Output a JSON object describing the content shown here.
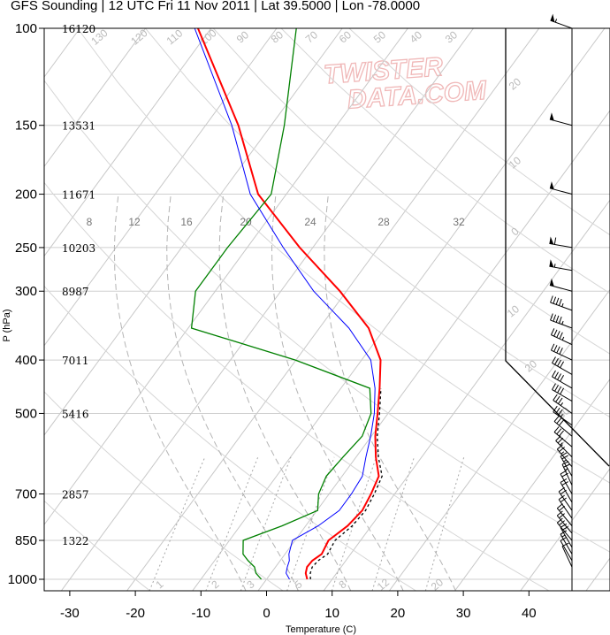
{
  "title": "GFS Sounding | 12 UTC Fri 11 Nov 2011 | Lat 39.5000 | Lon -78.0000",
  "watermark": {
    "line1": "TWISTER",
    "line2": "DATA.COM",
    "color": "#f0b8b8"
  },
  "colors": {
    "temperature": "#ff0000",
    "dewpoint": "#008000",
    "wetbulb": "#0000ff",
    "parcel": "#000000",
    "isotherm": "#c8c8c8",
    "mixing_ratio": "#a8a8a8"
  },
  "chart_data": {
    "type": "line",
    "xlabel": "Temperature (C)",
    "ylabel": "P (hPa)",
    "xlim": [
      -34,
      44
    ],
    "ylim": [
      1050,
      100
    ],
    "y_scale": "log",
    "grid": true,
    "x_ticks": [
      "-30",
      "-20",
      "-10",
      "0",
      "10",
      "20",
      "30",
      "40"
    ],
    "pressure_levels": [
      {
        "p": 100,
        "label": "100",
        "height": "16120"
      },
      {
        "p": 150,
        "label": "150",
        "height": "13531"
      },
      {
        "p": 200,
        "label": "200",
        "height": "11671"
      },
      {
        "p": 250,
        "label": "250",
        "height": "10203"
      },
      {
        "p": 300,
        "label": "300",
        "height": "8987"
      },
      {
        "p": 400,
        "label": "400",
        "height": "7011"
      },
      {
        "p": 500,
        "label": "500",
        "height": "5416"
      },
      {
        "p": 700,
        "label": "700",
        "height": "2857"
      },
      {
        "p": 850,
        "label": "850",
        "height": "1322"
      },
      {
        "p": 1000,
        "label": "1000",
        "height": ""
      }
    ],
    "series": [
      {
        "key": "temperature",
        "points": [
          [
            1000,
            6.2
          ],
          [
            975,
            5.3
          ],
          [
            950,
            4.8
          ],
          [
            925,
            4.9
          ],
          [
            900,
            5.6
          ],
          [
            850,
            5.1
          ],
          [
            800,
            6.4
          ],
          [
            750,
            6.9
          ],
          [
            700,
            6.4
          ],
          [
            650,
            5.6
          ],
          [
            600,
            3.0
          ],
          [
            550,
            0.6
          ],
          [
            500,
            -1.6
          ],
          [
            450,
            -4.1
          ],
          [
            400,
            -7.1
          ],
          [
            350,
            -12.5
          ],
          [
            300,
            -21.0
          ],
          [
            250,
            -32.0
          ],
          [
            200,
            -44.3
          ],
          [
            150,
            -55.0
          ],
          [
            100,
            -72.0
          ]
        ]
      },
      {
        "key": "dewpoint",
        "points": [
          [
            1000,
            -0.8
          ],
          [
            975,
            -2.3
          ],
          [
            950,
            -3.2
          ],
          [
            925,
            -4.9
          ],
          [
            900,
            -6.4
          ],
          [
            850,
            -7.9
          ],
          [
            800,
            -3.6
          ],
          [
            750,
            0.1
          ],
          [
            700,
            -1.6
          ],
          [
            650,
            -2.4
          ],
          [
            600,
            -2.0
          ],
          [
            550,
            -1.4
          ],
          [
            500,
            -2.6
          ],
          [
            450,
            -5.6
          ],
          [
            400,
            -20.1
          ],
          [
            350,
            -39.5
          ],
          [
            300,
            -43.0
          ],
          [
            250,
            -43.0
          ],
          [
            200,
            -42.3
          ],
          [
            150,
            -48.0
          ],
          [
            100,
            -57.0
          ]
        ]
      },
      {
        "key": "wetbulb",
        "points": [
          [
            1000,
            3.5
          ],
          [
            975,
            2.3
          ],
          [
            950,
            1.8
          ],
          [
            925,
            1.4
          ],
          [
            900,
            0.6
          ],
          [
            850,
            -0.4
          ],
          [
            800,
            1.9
          ],
          [
            750,
            3.4
          ],
          [
            700,
            3.4
          ],
          [
            650,
            3.1
          ],
          [
            600,
            1.5
          ],
          [
            550,
            -0.1
          ],
          [
            500,
            -2.1
          ],
          [
            450,
            -4.8
          ],
          [
            400,
            -8.6
          ],
          [
            350,
            -15.5
          ],
          [
            300,
            -25.0
          ],
          [
            250,
            -34.5
          ],
          [
            200,
            -45.5
          ],
          [
            150,
            -56.0
          ],
          [
            100,
            -72.5
          ]
        ]
      },
      {
        "key": "parcel",
        "points": [
          [
            1000,
            6.7
          ],
          [
            975,
            6.0
          ],
          [
            950,
            5.6
          ],
          [
            925,
            5.8
          ],
          [
            900,
            6.5
          ],
          [
            850,
            6.1
          ],
          [
            800,
            7.1
          ],
          [
            750,
            7.4
          ],
          [
            700,
            6.9
          ],
          [
            650,
            6.1
          ],
          [
            600,
            3.4
          ],
          [
            550,
            0.9
          ],
          [
            500,
            -1.3
          ],
          [
            450,
            -3.9
          ]
        ]
      }
    ],
    "wind_barbs": [
      {
        "p": 100,
        "dir": 290,
        "kt": 55
      },
      {
        "p": 150,
        "dir": 285,
        "kt": 50
      },
      {
        "p": 200,
        "dir": 285,
        "kt": 50
      },
      {
        "p": 250,
        "dir": 280,
        "kt": 60
      },
      {
        "p": 275,
        "dir": 280,
        "kt": 55
      },
      {
        "p": 300,
        "dir": 285,
        "kt": 50
      },
      {
        "p": 325,
        "dir": 290,
        "kt": 45
      },
      {
        "p": 350,
        "dir": 290,
        "kt": 45
      },
      {
        "p": 375,
        "dir": 295,
        "kt": 45
      },
      {
        "p": 400,
        "dir": 295,
        "kt": 40
      },
      {
        "p": 425,
        "dir": 300,
        "kt": 40
      },
      {
        "p": 450,
        "dir": 300,
        "kt": 40
      },
      {
        "p": 475,
        "dir": 300,
        "kt": 40
      },
      {
        "p": 500,
        "dir": 305,
        "kt": 35
      },
      {
        "p": 525,
        "dir": 305,
        "kt": 35
      },
      {
        "p": 550,
        "dir": 310,
        "kt": 30
      },
      {
        "p": 575,
        "dir": 310,
        "kt": 30
      },
      {
        "p": 600,
        "dir": 315,
        "kt": 25
      },
      {
        "p": 625,
        "dir": 320,
        "kt": 25
      },
      {
        "p": 650,
        "dir": 330,
        "kt": 25
      },
      {
        "p": 675,
        "dir": 335,
        "kt": 25
      },
      {
        "p": 700,
        "dir": 330,
        "kt": 20
      },
      {
        "p": 725,
        "dir": 330,
        "kt": 20
      },
      {
        "p": 750,
        "dir": 325,
        "kt": 20
      },
      {
        "p": 775,
        "dir": 325,
        "kt": 20
      },
      {
        "p": 800,
        "dir": 320,
        "kt": 20
      },
      {
        "p": 825,
        "dir": 320,
        "kt": 20
      },
      {
        "p": 850,
        "dir": 320,
        "kt": 20
      },
      {
        "p": 875,
        "dir": 330,
        "kt": 20
      },
      {
        "p": 900,
        "dir": 330,
        "kt": 15
      },
      {
        "p": 925,
        "dir": 330,
        "kt": 10
      },
      {
        "p": 950,
        "dir": 335,
        "kt": 10
      }
    ],
    "isotherm_labels": [
      "130",
      "120",
      "110",
      "100",
      "90",
      "80",
      "70",
      "60",
      "50",
      "40",
      "30",
      "20",
      "10",
      "0",
      "10",
      "20",
      "30"
    ],
    "mixing_ratio_labels": [
      "1",
      "2",
      "3",
      "5",
      "8",
      "12",
      "20"
    ],
    "upper_labels": [
      "8",
      "12",
      "16",
      "20",
      "24",
      "28",
      "32"
    ]
  }
}
